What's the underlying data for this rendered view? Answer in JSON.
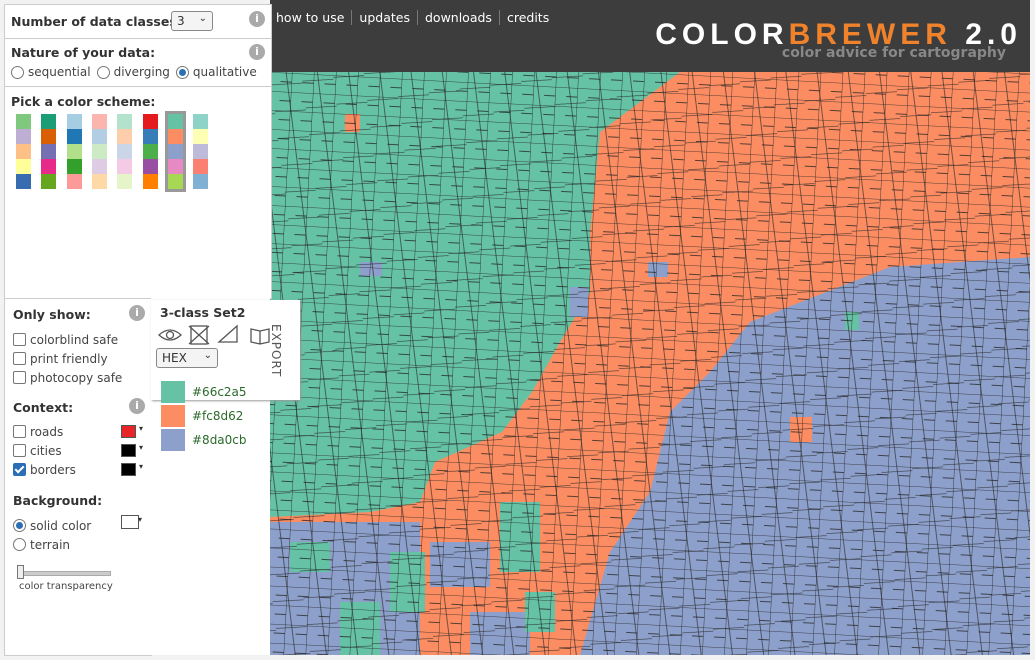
{
  "sidebar": {
    "classes_label": "Number of data classes:",
    "classes_value": "3",
    "nature_label": "Nature of your data:",
    "nature_options": [
      "sequential",
      "diverging",
      "qualitative"
    ],
    "nature_selected": 2,
    "scheme_label": "Pick a color scheme:",
    "schemes": [
      [
        "#7fc97f",
        "#beaed4",
        "#fdc086",
        "#ffff99",
        "#386cb0"
      ],
      [
        "#1b9e77",
        "#d95f02",
        "#7570b3",
        "#e7298a",
        "#66a61e"
      ],
      [
        "#a6cee3",
        "#1f78b4",
        "#b2df8a",
        "#33a02c",
        "#fb9a99"
      ],
      [
        "#fbb4ae",
        "#b3cde3",
        "#ccebc5",
        "#decbe4",
        "#fed9a6"
      ],
      [
        "#b3e2cd",
        "#fdcdac",
        "#cbd5e8",
        "#f4cae4",
        "#e6f5c9"
      ],
      [
        "#e41a1c",
        "#377eb8",
        "#4daf4a",
        "#984ea3",
        "#ff7f00"
      ],
      [
        "#66c2a5",
        "#fc8d62",
        "#8da0cb",
        "#e78ac3",
        "#a6d854"
      ],
      [
        "#8dd3c7",
        "#ffffb3",
        "#bebada",
        "#fb8072",
        "#80b1d3"
      ]
    ],
    "scheme_selected": 6,
    "info_icon": "i"
  },
  "nav": [
    "how to use",
    "updates",
    "downloads",
    "credits"
  ],
  "logo": {
    "color": "COLOR",
    "brewer": "BREWER",
    "version": "2.0",
    "tagline": "color advice for cartography"
  },
  "filters": {
    "label": "Only show:",
    "options": [
      "colorblind safe",
      "print friendly",
      "photocopy safe"
    ]
  },
  "context": {
    "label": "Context:",
    "options": [
      {
        "label": "roads",
        "checked": false,
        "color": "#e8262a"
      },
      {
        "label": "cities",
        "checked": false,
        "color": "#000000"
      },
      {
        "label": "borders",
        "checked": true,
        "color": "#000000"
      }
    ]
  },
  "background": {
    "label": "Background:",
    "options": [
      "solid color",
      "terrain"
    ],
    "selected": 0,
    "swatch": "#ffffff",
    "slider_label": "color transparency"
  },
  "legend": {
    "title": "3-class Set2",
    "format": "HEX",
    "export": "EXPORT",
    "classes": [
      "#66c2a5",
      "#fc8d62",
      "#8da0cb"
    ]
  }
}
